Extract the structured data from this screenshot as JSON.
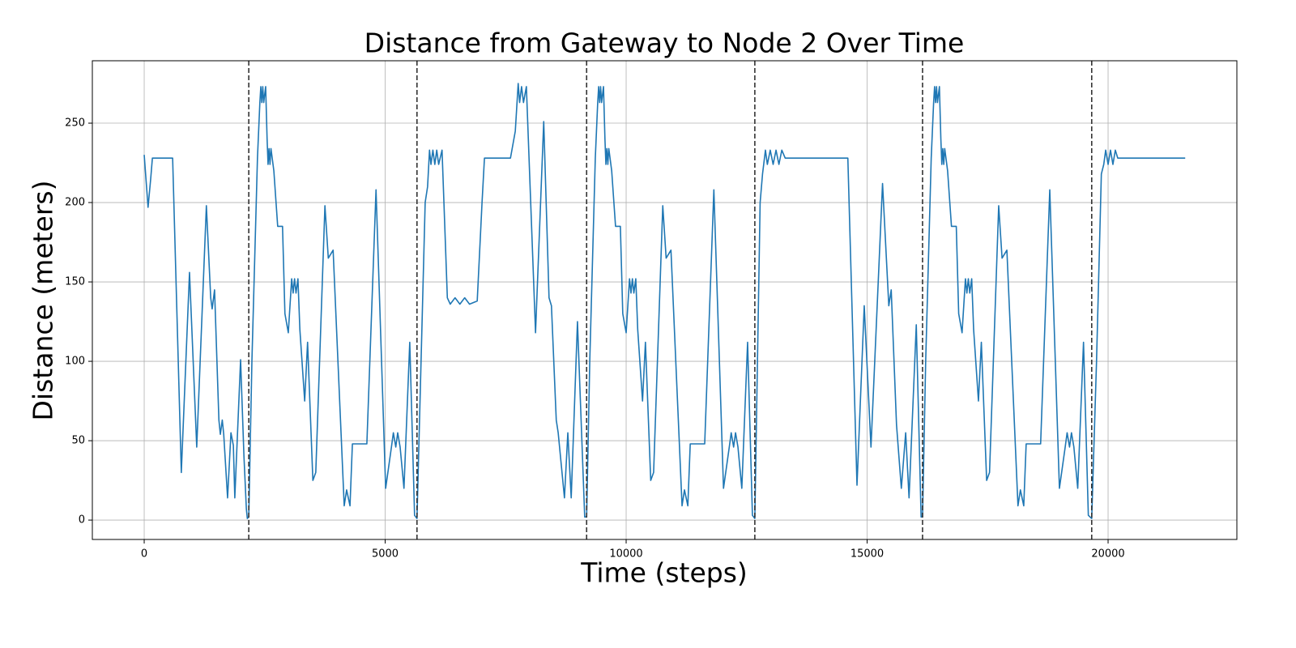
{
  "chart_data": {
    "type": "line",
    "title": "Distance from Gateway to Node 2 Over Time",
    "xlabel": "Time (steps)",
    "ylabel": "Distance (meters)",
    "color": "#1f77b4",
    "grid": true,
    "xlim": [
      -1076,
      22672
    ],
    "ylim": [
      -12.2,
      289.3
    ],
    "xticks": [
      0,
      5000,
      10000,
      15000,
      20000
    ],
    "yticks": [
      0,
      50,
      100,
      150,
      200,
      250
    ],
    "vlines": [
      2170,
      5660,
      9180,
      12670,
      16150,
      19660
    ],
    "x": [
      0,
      80,
      135,
      170,
      590,
      770,
      940,
      1090,
      1290,
      1380,
      1410,
      1460,
      1550,
      1580,
      1620,
      1650,
      1730,
      1800,
      1850,
      1880,
      2000,
      2070,
      2120,
      2140,
      2170,
      2235,
      2350,
      2400,
      2420,
      2440,
      2460,
      2480,
      2520,
      2550,
      2570,
      2590,
      2610,
      2630,
      2690,
      2770,
      2870,
      2920,
      2990,
      3060,
      3090,
      3120,
      3150,
      3190,
      3230,
      3330,
      3390,
      3500,
      3560,
      3750,
      3820,
      3920,
      4150,
      4200,
      4270,
      4320,
      4620,
      4810,
      5010,
      5130,
      5170,
      5220,
      5260,
      5310,
      5390,
      5510,
      5610,
      5660,
      5830,
      5880,
      5920,
      5950,
      5990,
      6030,
      6070,
      6110,
      6180,
      6290,
      6350,
      6450,
      6550,
      6650,
      6750,
      6910,
      7010,
      7060,
      7600,
      7700,
      7760,
      7790,
      7830,
      7870,
      7930,
      8120,
      8290,
      8400,
      8450,
      8550,
      8590,
      8720,
      8790,
      8860,
      8990,
      9140,
      9180,
      9245,
      9360,
      9410,
      9430,
      9450,
      9470,
      9490,
      9530,
      9560,
      9580,
      9600,
      9620,
      9640,
      9700,
      9780,
      9880,
      9930,
      10000,
      10070,
      10100,
      10130,
      10160,
      10200,
      10240,
      10340,
      10400,
      10510,
      10570,
      10760,
      10830,
      10930,
      11160,
      11210,
      11280,
      11330,
      11630,
      11820,
      12020,
      12140,
      12180,
      12230,
      12270,
      12320,
      12400,
      12520,
      12620,
      12670,
      12780,
      12830,
      12890,
      12930,
      12990,
      13050,
      13110,
      13170,
      13230,
      13300,
      14600,
      14790,
      14940,
      15080,
      15320,
      15450,
      15500,
      15610,
      15710,
      15800,
      15870,
      16020,
      16120,
      16150,
      16215,
      16330,
      16380,
      16400,
      16420,
      16440,
      16460,
      16500,
      16530,
      16550,
      16570,
      16590,
      16610,
      16670,
      16750,
      16850,
      16900,
      16970,
      17040,
      17070,
      17100,
      17130,
      17170,
      17210,
      17310,
      17370,
      17480,
      17540,
      17730,
      17800,
      17900,
      18130,
      18180,
      18250,
      18300,
      18600,
      18790,
      18990,
      19110,
      19150,
      19200,
      19240,
      19290,
      19370,
      19490,
      19590,
      19660,
      19760,
      19860,
      19910,
      19950,
      20000,
      20050,
      20100,
      20150,
      20200,
      21600
    ],
    "values": [
      230,
      197,
      215,
      228,
      228,
      30,
      156,
      46,
      198,
      140,
      133,
      145,
      63,
      54,
      63,
      54,
      14,
      55,
      47,
      14,
      101,
      40,
      7,
      1,
      2,
      100,
      228,
      263,
      273,
      263,
      273,
      263,
      273,
      240,
      224,
      234,
      224,
      234,
      220,
      185,
      185,
      130,
      118,
      152,
      143,
      152,
      143,
      152,
      120,
      75,
      112,
      25,
      30,
      198,
      165,
      170,
      9,
      19,
      9,
      48,
      48,
      208,
      20,
      46,
      55,
      46,
      55,
      46,
      20,
      112,
      3,
      1,
      200,
      210,
      233,
      224,
      233,
      224,
      233,
      224,
      233,
      140,
      136,
      140,
      136,
      140,
      136,
      138,
      200,
      228,
      228,
      245,
      275,
      263,
      273,
      263,
      273,
      118,
      251,
      140,
      135,
      63,
      55,
      14,
      55,
      14,
      125,
      2,
      2,
      100,
      228,
      263,
      273,
      263,
      273,
      263,
      273,
      240,
      224,
      234,
      224,
      234,
      220,
      185,
      185,
      130,
      118,
      152,
      143,
      152,
      143,
      152,
      120,
      75,
      112,
      25,
      30,
      198,
      165,
      170,
      9,
      19,
      9,
      48,
      48,
      208,
      20,
      46,
      55,
      46,
      55,
      46,
      20,
      112,
      3,
      1,
      200,
      218,
      233,
      224,
      233,
      224,
      233,
      224,
      233,
      228,
      228,
      22,
      135,
      46,
      212,
      135,
      145,
      60,
      20,
      55,
      14,
      123,
      2,
      2,
      100,
      228,
      263,
      273,
      263,
      273,
      263,
      273,
      240,
      224,
      234,
      224,
      234,
      220,
      185,
      185,
      130,
      118,
      152,
      143,
      152,
      143,
      152,
      120,
      75,
      112,
      25,
      30,
      198,
      165,
      170,
      9,
      19,
      9,
      48,
      48,
      208,
      20,
      46,
      55,
      46,
      55,
      46,
      20,
      112,
      3,
      1,
      100,
      218,
      224,
      233,
      224,
      233,
      224,
      233,
      228,
      228
    ]
  }
}
